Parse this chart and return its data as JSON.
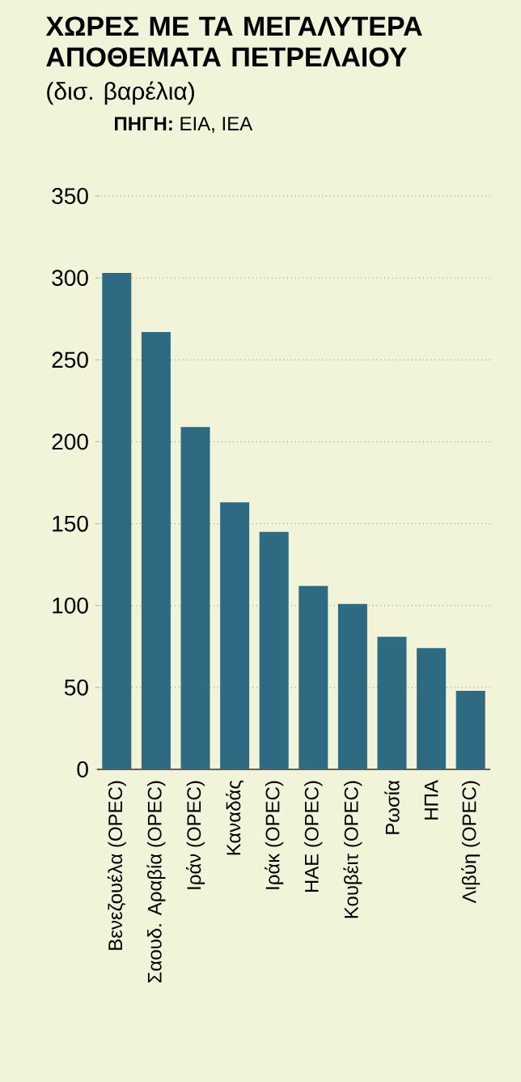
{
  "chart_data": {
    "type": "bar",
    "title": "ΧΩΡΕΣ ΜΕ ΤΑ ΜΕΓΑΛΥΤΕΡΑ ΑΠΟΘΕΜΑΤΑ ΠΕΤΡΕΛΑΙΟΥ",
    "subtitle": "(δισ. βαρέλια)",
    "annotations": [
      "**ΠΗΓΗ:** EIA, IEA"
    ],
    "categories": [
      "Βενεζουέλα (OPEC)",
      "Σαουδ. Αραβία (OPEC)",
      "Ιράν (OPEC)",
      "Καναδάς",
      "Ιράκ (OPEC)",
      "ΗΑΕ (OPEC)",
      "Κουβέιτ (OPEC)",
      "Ρωσία",
      "ΗΠΑ",
      "Λιβύη (OPEC)"
    ],
    "values": [
      303,
      267,
      209,
      163,
      145,
      112,
      101,
      81,
      74,
      48
    ],
    "color": "#2e6a82",
    "ylim": [
      0,
      350
    ],
    "yticks": [
      0,
      50,
      100,
      150,
      200,
      250,
      300,
      350
    ],
    "grid": "y"
  }
}
